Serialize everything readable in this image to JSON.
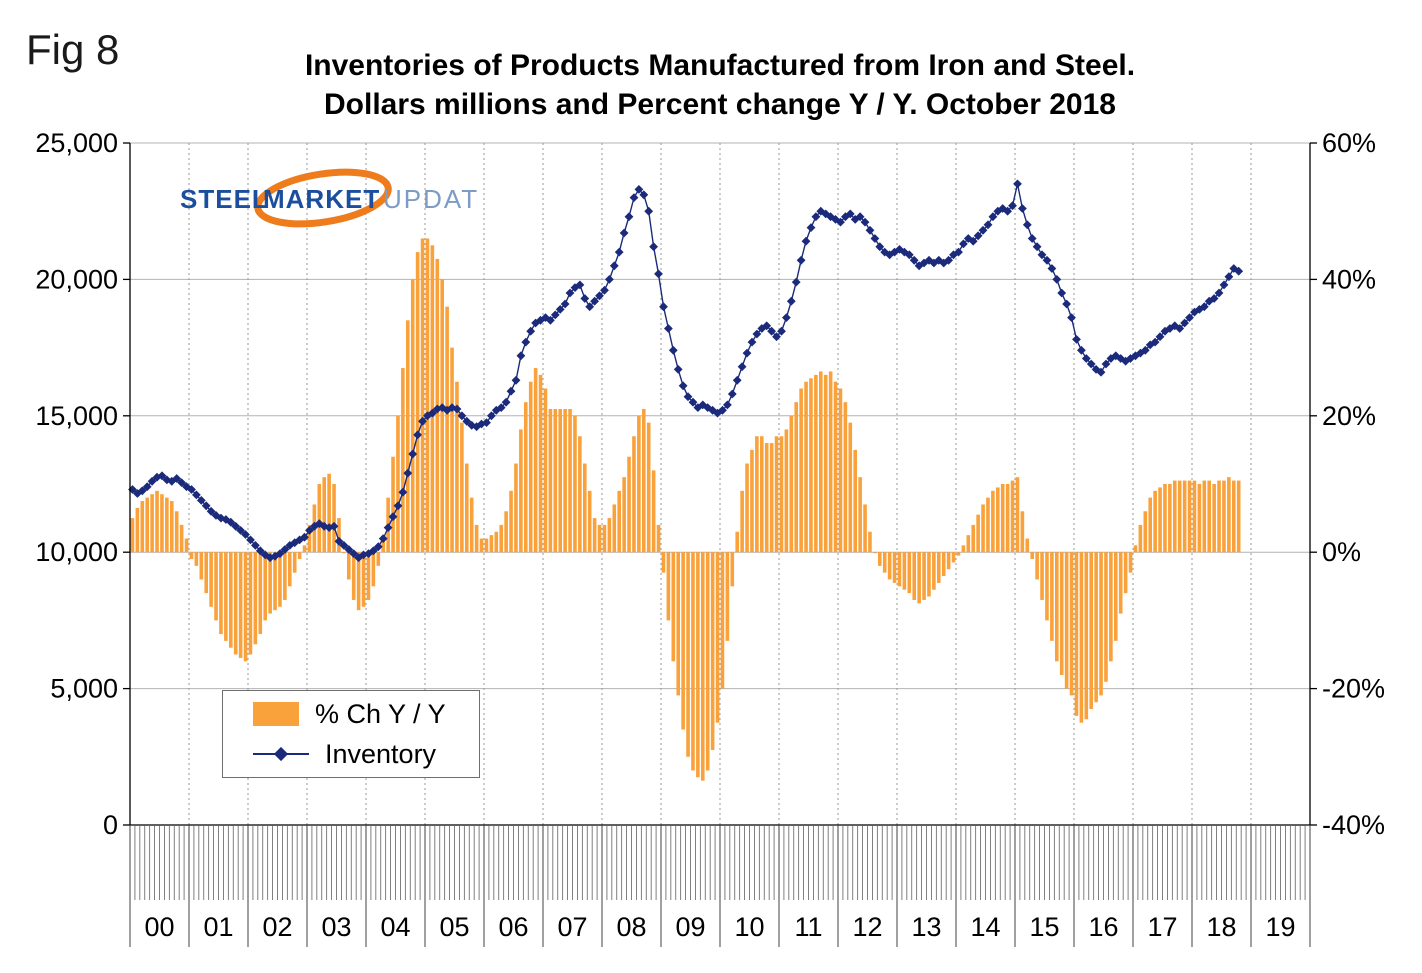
{
  "fig_label": "Fig 8",
  "title_line1": "Inventories of Products Manufactured from Iron and Steel.",
  "title_line2": "Dollars millions and Percent change Y / Y. October 2018",
  "logo": {
    "steel": "STEEL",
    "market": "MARKET",
    "update": "UPDATE"
  },
  "legend": {
    "bar_label": "% Ch Y / Y",
    "line_label": "Inventory"
  },
  "colors": {
    "bar": "#F9A13B",
    "line": "#1B2A7B",
    "grid": "#B3B3B3",
    "grid_dash": "#9A9A9A",
    "axis": "#000000",
    "swoosh": "#EE7B1C"
  },
  "chart_data": {
    "type": "bar",
    "subtype": "combo-bar-line-dual-axis",
    "title": "Inventories of Products Manufactured from Iron and Steel. Dollars millions and Percent change Y / Y. October 2018",
    "x_unit": "month",
    "x_start": "2000-01",
    "x_end": "2018-10",
    "x_labels": [
      "00",
      "01",
      "02",
      "03",
      "04",
      "05",
      "06",
      "07",
      "08",
      "09",
      "10",
      "11",
      "12",
      "13",
      "14",
      "15",
      "16",
      "17",
      "18",
      "19"
    ],
    "left_axis": {
      "label": "Dollars millions",
      "min": 0,
      "max": 25000,
      "ticks": [
        "25,000",
        "20,000",
        "15,000",
        "10,000",
        "5,000",
        "0"
      ],
      "values": [
        25000,
        20000,
        15000,
        10000,
        5000,
        0
      ]
    },
    "right_axis": {
      "label": "Percent change Y / Y",
      "min": -40,
      "max": 60,
      "ticks": [
        "60%",
        "40%",
        "20%",
        "0%",
        "-20%",
        "-40%"
      ],
      "values": [
        60,
        40,
        20,
        0,
        -20,
        -40
      ]
    },
    "grid": {
      "horizontal": "solid",
      "vertical": "dashed-yearly"
    },
    "legend_position": "inside-lower-left",
    "series": [
      {
        "name": "% Ch Y / Y",
        "type": "bar",
        "axis": "right",
        "values": [
          5,
          6.5,
          7.5,
          8,
          8.5,
          9,
          8.5,
          8,
          7.5,
          6,
          4,
          2,
          -1,
          -2,
          -4,
          -6,
          -8,
          -10,
          -12,
          -13,
          -14,
          -15,
          -15.5,
          -16,
          -15,
          -13.5,
          -12,
          -10,
          -9,
          -8.5,
          -8,
          -7,
          -5,
          -3,
          -1,
          1,
          4,
          7,
          10,
          11,
          11.5,
          10,
          5,
          0,
          -4,
          -7,
          -8.5,
          -8,
          -7,
          -5,
          -2,
          2,
          8,
          14,
          20,
          27,
          34,
          40,
          44,
          46,
          46,
          45,
          43,
          40,
          36,
          30,
          25,
          19,
          13,
          8,
          4,
          2,
          2,
          2.5,
          3,
          4,
          6,
          9,
          13,
          18,
          22,
          25,
          27,
          26,
          24,
          21,
          21,
          21,
          21,
          21,
          20,
          17,
          13,
          9,
          5,
          4,
          4,
          5,
          7,
          9,
          11,
          14,
          17,
          20,
          21,
          19,
          12,
          4,
          -3,
          -10,
          -16,
          -21,
          -26,
          -30,
          -32,
          -33,
          -33.5,
          -32,
          -29,
          -25,
          -20,
          -13,
          -5,
          3,
          9,
          13,
          15,
          17,
          17,
          16,
          16,
          17,
          17,
          18,
          20,
          22,
          24,
          25,
          25.5,
          26,
          26.5,
          26,
          26.5,
          25,
          24,
          22,
          19,
          15,
          11,
          7,
          3,
          0,
          -2,
          -3,
          -4,
          -4.5,
          -5,
          -5.5,
          -6,
          -7,
          -7.5,
          -7,
          -6.5,
          -5.5,
          -4.5,
          -3.5,
          -2.5,
          -1.5,
          -0.5,
          1,
          2.5,
          4,
          5.5,
          7,
          8,
          9,
          9.5,
          10,
          10,
          10.5,
          11,
          6,
          2,
          -1,
          -4,
          -7,
          -10,
          -13,
          -16,
          -18,
          -20,
          -21,
          -24,
          -25,
          -24.5,
          -23,
          -22,
          -21,
          -19,
          -16,
          -13,
          -9,
          -6,
          -3,
          1,
          4,
          6,
          8,
          9,
          9.5,
          10,
          10,
          10.5,
          10.5,
          10.5,
          10.5,
          10.5,
          10,
          10.5,
          10.5,
          10,
          10.5,
          10.5,
          11,
          10.5,
          10.5
        ]
      },
      {
        "name": "Inventory",
        "type": "line",
        "axis": "left",
        "marker": "diamond",
        "values": [
          12300,
          12150,
          12250,
          12400,
          12600,
          12750,
          12800,
          12650,
          12600,
          12700,
          12550,
          12400,
          12300,
          12100,
          11900,
          11700,
          11500,
          11350,
          11250,
          11200,
          11100,
          10950,
          10800,
          10650,
          10450,
          10250,
          10050,
          9900,
          9800,
          9850,
          9950,
          10100,
          10250,
          10350,
          10450,
          10550,
          10800,
          10950,
          11050,
          10950,
          10900,
          10950,
          10400,
          10250,
          10100,
          9950,
          9800,
          9900,
          9950,
          10050,
          10200,
          10500,
          10900,
          11300,
          11700,
          12200,
          12900,
          13600,
          14300,
          14800,
          15000,
          15100,
          15250,
          15300,
          15200,
          15300,
          15250,
          15000,
          14800,
          14650,
          14600,
          14700,
          14750,
          15000,
          15200,
          15300,
          15500,
          15900,
          16300,
          17200,
          17700,
          18100,
          18400,
          18500,
          18600,
          18500,
          18700,
          18900,
          19100,
          19500,
          19700,
          19800,
          19300,
          19000,
          19200,
          19400,
          19600,
          20000,
          20500,
          21000,
          21700,
          22300,
          23000,
          23300,
          23100,
          22500,
          21200,
          20200,
          19000,
          18200,
          17400,
          16700,
          16100,
          15700,
          15500,
          15300,
          15400,
          15300,
          15200,
          15100,
          15200,
          15400,
          15800,
          16300,
          16800,
          17300,
          17700,
          18000,
          18200,
          18300,
          18100,
          17900,
          18100,
          18600,
          19200,
          19900,
          20700,
          21400,
          21900,
          22300,
          22500,
          22400,
          22300,
          22200,
          22100,
          22300,
          22400,
          22200,
          22300,
          22100,
          21800,
          21500,
          21200,
          21000,
          20900,
          21000,
          21100,
          21000,
          20900,
          20700,
          20500,
          20600,
          20700,
          20600,
          20700,
          20600,
          20700,
          20900,
          21000,
          21300,
          21500,
          21400,
          21600,
          21800,
          22000,
          22300,
          22500,
          22600,
          22500,
          22700,
          23500,
          22600,
          22000,
          21500,
          21200,
          20900,
          20700,
          20400,
          20000,
          19500,
          19100,
          18600,
          17800,
          17400,
          17100,
          16900,
          16700,
          16600,
          16900,
          17100,
          17200,
          17100,
          17000,
          17100,
          17200,
          17300,
          17400,
          17600,
          17700,
          17900,
          18100,
          18200,
          18300,
          18200,
          18400,
          18600,
          18800,
          18900,
          19000,
          19200,
          19300,
          19500,
          19800,
          20100,
          20400,
          20300
        ]
      }
    ]
  }
}
